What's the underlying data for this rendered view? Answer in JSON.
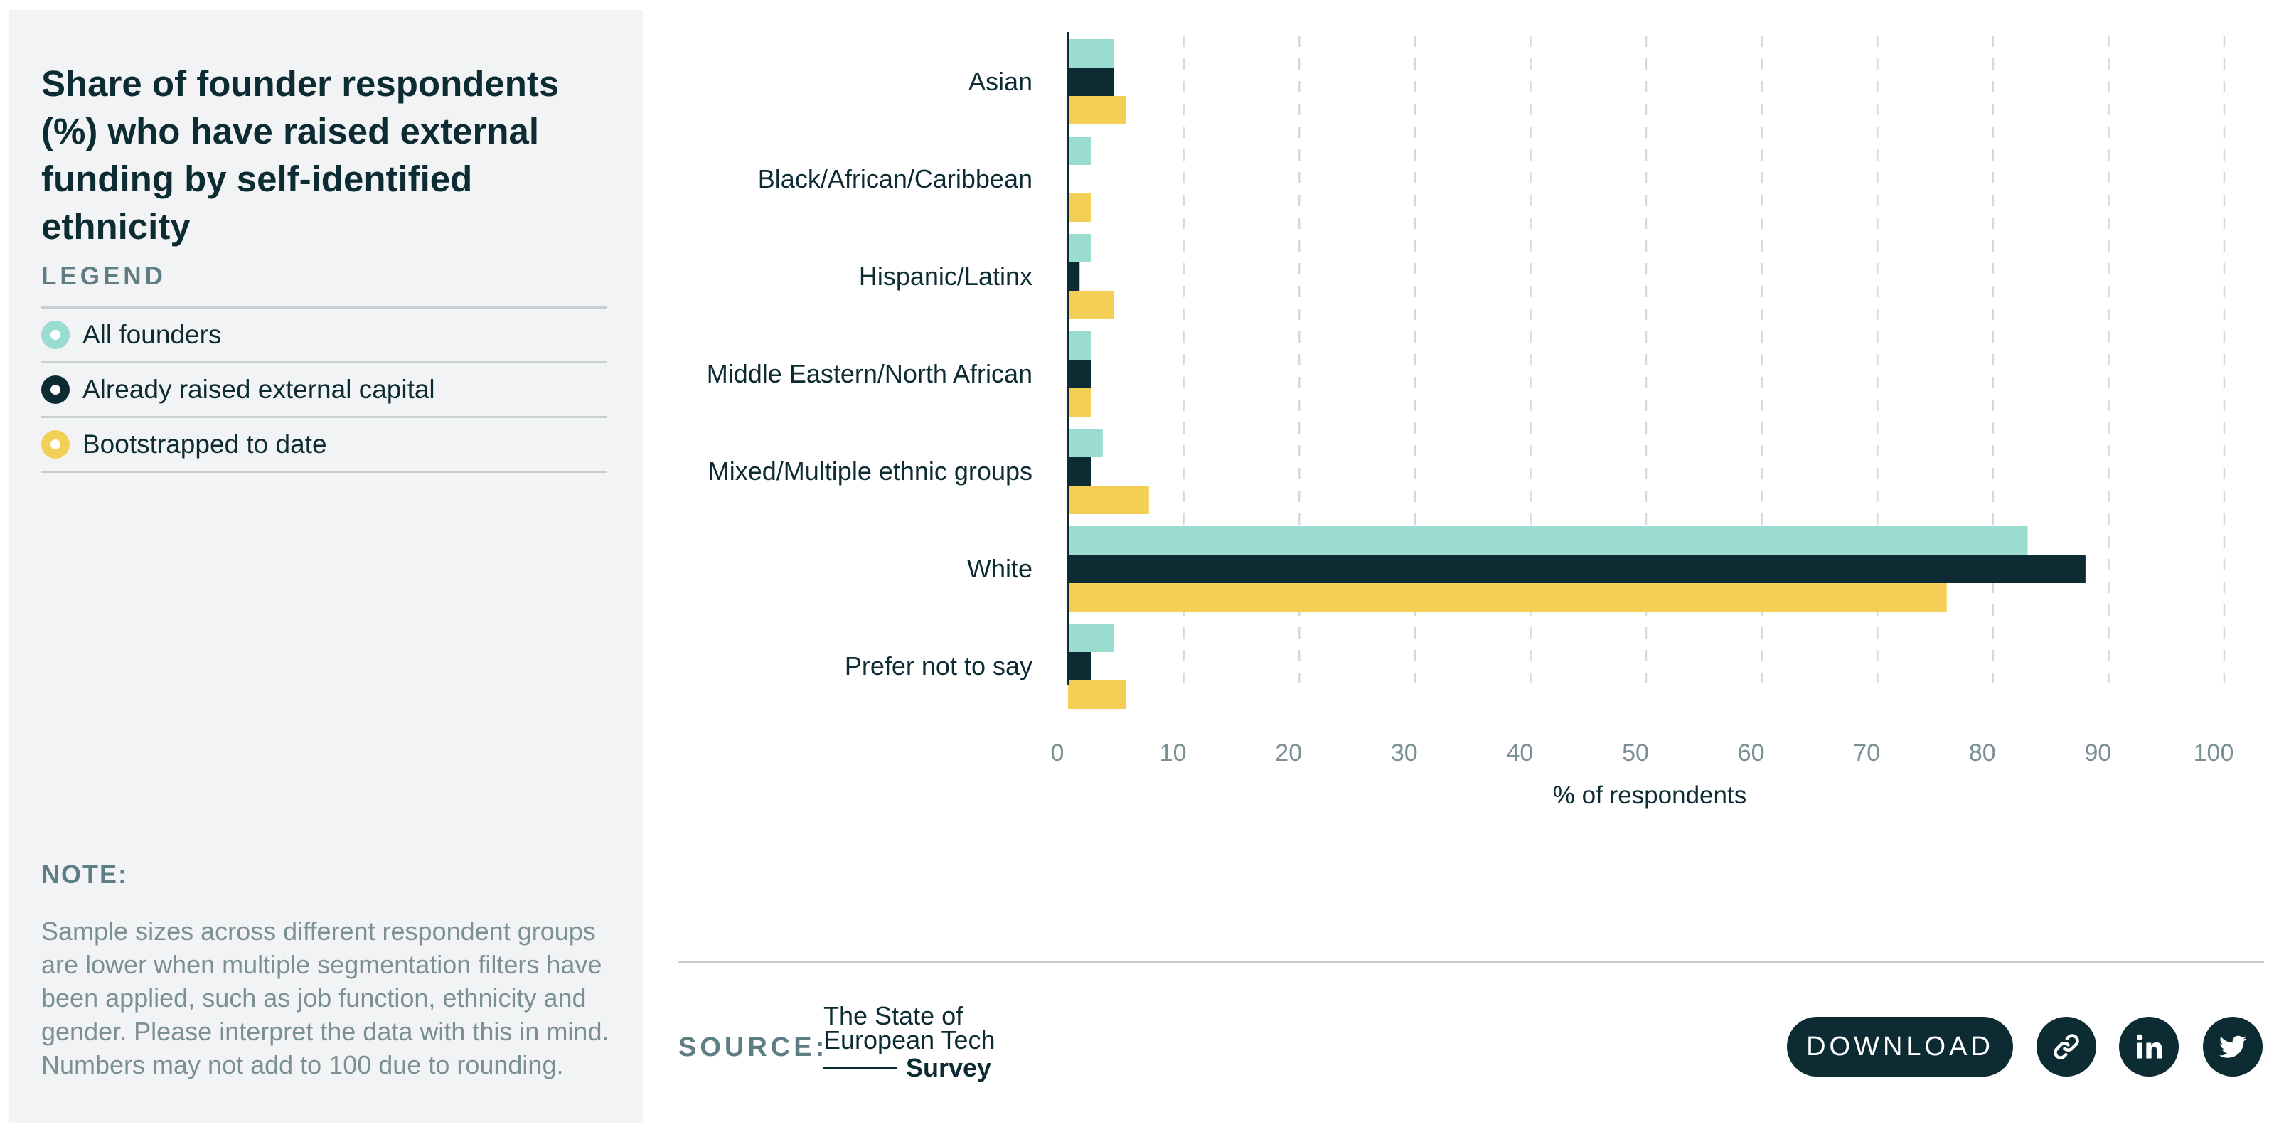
{
  "title": "Share of founder respondents (%) who have raised external funding by self-identified ethnicity",
  "legend": {
    "heading": "LEGEND",
    "items": [
      {
        "label": "All founders",
        "color": "#9adccf"
      },
      {
        "label": "Already raised external capital",
        "color": "#0d2b33"
      },
      {
        "label": "Bootstrapped to date",
        "color": "#f4cf55"
      }
    ]
  },
  "note": {
    "heading": "NOTE:",
    "text": "Sample sizes across different respondent groups are lower when multiple segmentation filters have been applied, such as job function, ethnicity and gender. Please interpret the data with this in mind. Numbers may not add to 100 due to rounding."
  },
  "chart_data": {
    "type": "bar",
    "orientation": "horizontal",
    "title": "Share of founder respondents (%) who have raised external funding by self-identified ethnicity",
    "xlabel": "% of respondents",
    "ylabel": "",
    "xlim": [
      0,
      100
    ],
    "xticks": [
      0,
      10,
      20,
      30,
      40,
      50,
      60,
      70,
      80,
      90,
      100
    ],
    "grid": "vertical dashed",
    "categories": [
      "Asian",
      "Black/African/Caribbean",
      "Hispanic/Latinx",
      "Middle Eastern/North African",
      "Mixed/Multiple ethnic groups",
      "White",
      "Prefer not to say"
    ],
    "series": [
      {
        "name": "All founders",
        "color": "#9adccf",
        "values": [
          4,
          2,
          2,
          2,
          3,
          83,
          4
        ]
      },
      {
        "name": "Already raised external capital",
        "color": "#0d2b33",
        "values": [
          4,
          0,
          1,
          2,
          2,
          88,
          2
        ]
      },
      {
        "name": "Bootstrapped to date",
        "color": "#f4cf55",
        "values": [
          5,
          2,
          4,
          2,
          7,
          76,
          5
        ]
      }
    ]
  },
  "footer": {
    "source_label": "SOURCE:",
    "logo": {
      "line1": "The State of",
      "line2": "European Tech",
      "line3": "Survey"
    },
    "download_label": "DOWNLOAD",
    "link_icon": "link-icon",
    "linkedin_icon": "linkedin-icon",
    "twitter_icon": "twitter-icon"
  }
}
